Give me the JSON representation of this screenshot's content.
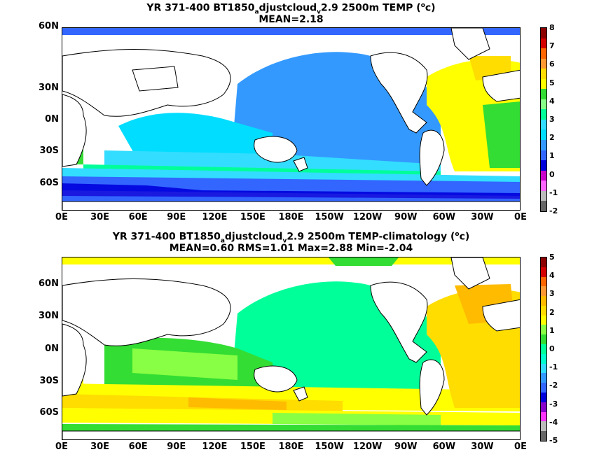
{
  "panels": [
    {
      "title_pre": "YR 371-400 BT1850",
      "title_sub1": "a",
      "title_mid": "djustcloud",
      "title_sub2": "v",
      "title_post": "2.9 2500m TEMP (",
      "title_sup": "o",
      "title_end": "c)",
      "stats": "MEAN=2.18",
      "colorbar_labels": [
        "8",
        "7",
        "6",
        "5",
        "4",
        "3",
        "2",
        "1",
        "0",
        "-1",
        "-2"
      ],
      "colors": [
        "#8b0000",
        "#d40000",
        "#ff6600",
        "#ff9933",
        "#ffdd00",
        "#ffff00",
        "#33dd33",
        "#88ff88",
        "#00ff99",
        "#33ddff",
        "#00ddff",
        "#3399ff",
        "#3366ff",
        "#0000dd",
        "#cc00cc",
        "#ff66ff",
        "#bbbbbb",
        "#666666"
      ]
    },
    {
      "title_pre": "YR 371-400 BT1850",
      "title_sub1": "a",
      "title_mid": "djustcloud",
      "title_sub2": "v",
      "title_post": "2.9 2500m TEMP-climatology (",
      "title_sup": "o",
      "title_end": "c)",
      "stats": "MEAN=0.60   RMS=1.01   Max=2.88   Min=-2.04",
      "colorbar_labels": [
        "5",
        "4",
        "3",
        "2",
        "1",
        "0",
        "-1",
        "-2",
        "-3",
        "-4",
        "-5"
      ],
      "colors": [
        "#8b0000",
        "#d40000",
        "#ff6600",
        "#ff9933",
        "#ffbb00",
        "#ffdd00",
        "#ffff00",
        "#88ff44",
        "#33dd33",
        "#00ff99",
        "#00ffcc",
        "#33ddff",
        "#3399ff",
        "#3366ff",
        "#0000dd",
        "#8800cc",
        "#ff33ff",
        "#bbbbbb",
        "#666666"
      ]
    }
  ],
  "lat_labels": [
    "60N",
    "30N",
    "0N",
    "30S",
    "60S"
  ],
  "lon_labels": [
    "0E",
    "30E",
    "60E",
    "90E",
    "120E",
    "150E",
    "180E",
    "150W",
    "120W",
    "90W",
    "60W",
    "30W",
    "0E"
  ]
}
